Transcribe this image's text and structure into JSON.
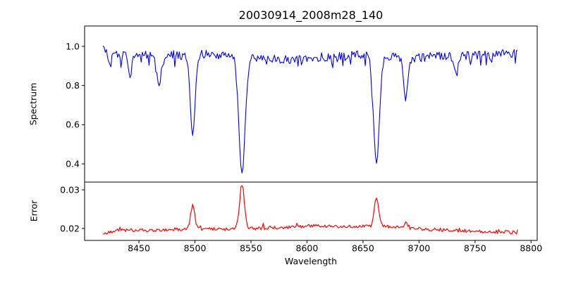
{
  "chart_data": [
    {
      "type": "line",
      "panel": "spectrum",
      "title": "20030914_2008m28_140",
      "ylabel": "Spectrum",
      "xlabel": "",
      "line_color": "#0000ff",
      "background": "#ffffff",
      "grid": false,
      "legend": null,
      "xlim": [
        8401.5,
        8805.5
      ],
      "ylim": [
        0.307,
        1.104
      ],
      "yticks": [
        0.4,
        0.6,
        0.8,
        1.0
      ],
      "ytick_labels": [
        "0.4",
        "0.6",
        "0.8",
        "1.0"
      ],
      "x_start": 8418,
      "x_end": 8788,
      "x_step": 1,
      "continuum_anchors": [
        [
          8418,
          0.985
        ],
        [
          8430,
          0.955
        ],
        [
          8445,
          0.965
        ],
        [
          8462,
          0.95
        ],
        [
          8478,
          0.96
        ],
        [
          8492,
          0.955
        ],
        [
          8510,
          0.96
        ],
        [
          8528,
          0.955
        ],
        [
          8545,
          0.95
        ],
        [
          8560,
          0.94
        ],
        [
          8578,
          0.93
        ],
        [
          8595,
          0.94
        ],
        [
          8612,
          0.945
        ],
        [
          8630,
          0.95
        ],
        [
          8648,
          0.96
        ],
        [
          8665,
          0.95
        ],
        [
          8682,
          0.945
        ],
        [
          8698,
          0.94
        ],
        [
          8715,
          0.95
        ],
        [
          8732,
          0.95
        ],
        [
          8748,
          0.955
        ],
        [
          8765,
          0.96
        ],
        [
          8788,
          0.965
        ]
      ],
      "absorption_lines": [
        {
          "center": 8424,
          "depth": 0.07,
          "sigma": 1.5,
          "min_value": 0.89
        },
        {
          "center": 8442,
          "depth": 0.11,
          "sigma": 1.8,
          "min_value": 0.85
        },
        {
          "center": 8468,
          "depth": 0.14,
          "sigma": 1.9,
          "min_value": 0.81
        },
        {
          "center": 8498,
          "depth": 0.41,
          "sigma": 2.2,
          "min_value": 0.54
        },
        {
          "center": 8542,
          "depth": 0.6,
          "sigma": 2.8,
          "min_value": 0.35
        },
        {
          "center": 8662,
          "depth": 0.55,
          "sigma": 2.6,
          "min_value": 0.4
        },
        {
          "center": 8688,
          "depth": 0.21,
          "sigma": 1.9,
          "min_value": 0.73
        },
        {
          "center": 8733,
          "depth": 0.1,
          "sigma": 1.7,
          "min_value": 0.85
        }
      ],
      "noise": {
        "amplitude": 0.022,
        "dip_probability": 0.1,
        "dip_extra": 0.05,
        "seed": 20030914
      },
      "key_values": {
        "continuum_level": 0.96,
        "maximum": 1.04,
        "deepest_minimum": 0.35
      }
    },
    {
      "type": "line",
      "panel": "error",
      "ylabel": "Error",
      "xlabel": "Wavelength",
      "line_color": "#ff0000",
      "background": "#ffffff",
      "grid": false,
      "legend": null,
      "xlim": [
        8401.5,
        8805.5
      ],
      "ylim": [
        0.0169,
        0.032
      ],
      "yticks": [
        0.02,
        0.03
      ],
      "ytick_labels": [
        "0.02",
        "0.03"
      ],
      "xticks": [
        8450,
        8500,
        8550,
        8600,
        8650,
        8700,
        8750,
        8800
      ],
      "xtick_labels": [
        "8450",
        "8500",
        "8550",
        "8600",
        "8650",
        "8700",
        "8750",
        "8800"
      ],
      "x_start": 8418,
      "x_end": 8788,
      "x_step": 1,
      "baseline_anchors": [
        [
          8418,
          0.0188
        ],
        [
          8435,
          0.0196
        ],
        [
          8455,
          0.0195
        ],
        [
          8475,
          0.0197
        ],
        [
          8500,
          0.0199
        ],
        [
          8525,
          0.0198
        ],
        [
          8550,
          0.02
        ],
        [
          8575,
          0.0202
        ],
        [
          8600,
          0.0207
        ],
        [
          8625,
          0.0204
        ],
        [
          8650,
          0.0205
        ],
        [
          8665,
          0.0206
        ],
        [
          8685,
          0.0202
        ],
        [
          8705,
          0.0198
        ],
        [
          8725,
          0.0196
        ],
        [
          8750,
          0.0193
        ],
        [
          8770,
          0.0191
        ],
        [
          8788,
          0.019
        ]
      ],
      "peaks": [
        {
          "center": 8498,
          "height": 0.0062,
          "sigma": 1.8,
          "peak_value": 0.0265
        },
        {
          "center": 8542,
          "height": 0.0112,
          "sigma": 2.2,
          "peak_value": 0.0315
        },
        {
          "center": 8662,
          "height": 0.0072,
          "sigma": 1.9,
          "peak_value": 0.028
        },
        {
          "center": 8688,
          "height": 0.0012,
          "sigma": 1.6,
          "peak_value": 0.022
        }
      ],
      "noise": {
        "amplitude": 0.00045,
        "spike_probability": 0.06,
        "spike_extra": 0.0009,
        "seed": 140
      },
      "key_values": {
        "baseline_level": 0.0195
      }
    }
  ]
}
